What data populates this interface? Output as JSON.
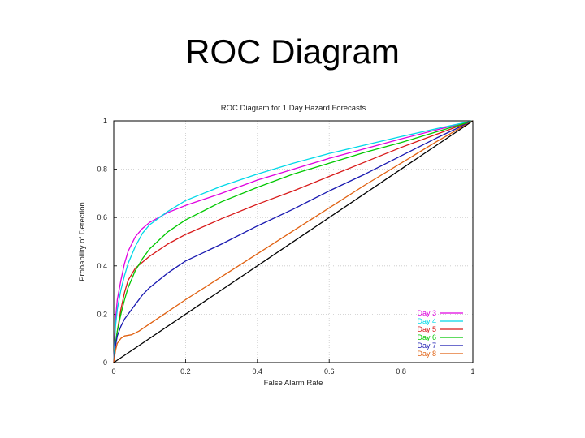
{
  "slide": {
    "title": "ROC Diagram"
  },
  "chart_data": {
    "type": "line",
    "title": "ROC Diagram for 1 Day Hazard Forecasts",
    "xlabel": "False Alarm Rate",
    "ylabel": "Probability of Detection",
    "xlim": [
      0,
      1
    ],
    "ylim": [
      0,
      1
    ],
    "xticks": [
      "0",
      "0.2",
      "0.4",
      "0.6",
      "0.8",
      "1"
    ],
    "yticks": [
      "0",
      "0.2",
      "0.4",
      "0.6",
      "0.8",
      "1"
    ],
    "grid": true,
    "legend_position": "bottom-right",
    "series": [
      {
        "name": "Day 3",
        "color": "#e000e0",
        "points": [
          [
            0,
            0
          ],
          [
            0.005,
            0.18
          ],
          [
            0.01,
            0.26
          ],
          [
            0.02,
            0.34
          ],
          [
            0.03,
            0.41
          ],
          [
            0.04,
            0.46
          ],
          [
            0.06,
            0.52
          ],
          [
            0.08,
            0.555
          ],
          [
            0.1,
            0.58
          ],
          [
            0.15,
            0.62
          ],
          [
            0.2,
            0.65
          ],
          [
            0.3,
            0.7
          ],
          [
            0.4,
            0.755
          ],
          [
            0.5,
            0.8
          ],
          [
            0.6,
            0.845
          ],
          [
            0.7,
            0.885
          ],
          [
            0.8,
            0.925
          ],
          [
            0.9,
            0.963
          ],
          [
            1,
            1
          ]
        ]
      },
      {
        "name": "Day 4",
        "color": "#00d8e8",
        "points": [
          [
            0,
            0
          ],
          [
            0.005,
            0.15
          ],
          [
            0.01,
            0.22
          ],
          [
            0.02,
            0.3
          ],
          [
            0.03,
            0.36
          ],
          [
            0.04,
            0.41
          ],
          [
            0.06,
            0.48
          ],
          [
            0.08,
            0.535
          ],
          [
            0.1,
            0.57
          ],
          [
            0.15,
            0.625
          ],
          [
            0.2,
            0.67
          ],
          [
            0.3,
            0.73
          ],
          [
            0.4,
            0.78
          ],
          [
            0.5,
            0.825
          ],
          [
            0.6,
            0.865
          ],
          [
            0.7,
            0.9
          ],
          [
            0.8,
            0.935
          ],
          [
            0.9,
            0.968
          ],
          [
            1,
            1
          ]
        ]
      },
      {
        "name": "Day 5",
        "color": "#d81818",
        "points": [
          [
            0,
            0
          ],
          [
            0.005,
            0.08
          ],
          [
            0.01,
            0.13
          ],
          [
            0.02,
            0.22
          ],
          [
            0.03,
            0.29
          ],
          [
            0.04,
            0.34
          ],
          [
            0.06,
            0.39
          ],
          [
            0.08,
            0.415
          ],
          [
            0.1,
            0.44
          ],
          [
            0.15,
            0.49
          ],
          [
            0.2,
            0.53
          ],
          [
            0.3,
            0.595
          ],
          [
            0.4,
            0.655
          ],
          [
            0.5,
            0.71
          ],
          [
            0.6,
            0.77
          ],
          [
            0.7,
            0.83
          ],
          [
            0.8,
            0.89
          ],
          [
            0.9,
            0.945
          ],
          [
            1,
            1
          ]
        ]
      },
      {
        "name": "Day 6",
        "color": "#00c800",
        "points": [
          [
            0,
            0
          ],
          [
            0.005,
            0.08
          ],
          [
            0.01,
            0.13
          ],
          [
            0.02,
            0.2
          ],
          [
            0.03,
            0.26
          ],
          [
            0.04,
            0.31
          ],
          [
            0.06,
            0.38
          ],
          [
            0.08,
            0.43
          ],
          [
            0.1,
            0.47
          ],
          [
            0.15,
            0.54
          ],
          [
            0.2,
            0.59
          ],
          [
            0.3,
            0.665
          ],
          [
            0.4,
            0.725
          ],
          [
            0.5,
            0.78
          ],
          [
            0.6,
            0.825
          ],
          [
            0.7,
            0.87
          ],
          [
            0.8,
            0.91
          ],
          [
            0.9,
            0.955
          ],
          [
            1,
            1
          ]
        ]
      },
      {
        "name": "Day 7",
        "color": "#1818b0",
        "points": [
          [
            0,
            0
          ],
          [
            0.005,
            0.07
          ],
          [
            0.01,
            0.11
          ],
          [
            0.02,
            0.15
          ],
          [
            0.03,
            0.18
          ],
          [
            0.04,
            0.2
          ],
          [
            0.06,
            0.24
          ],
          [
            0.08,
            0.28
          ],
          [
            0.1,
            0.31
          ],
          [
            0.15,
            0.37
          ],
          [
            0.2,
            0.42
          ],
          [
            0.3,
            0.49
          ],
          [
            0.4,
            0.565
          ],
          [
            0.5,
            0.635
          ],
          [
            0.6,
            0.71
          ],
          [
            0.7,
            0.78
          ],
          [
            0.8,
            0.855
          ],
          [
            0.9,
            0.93
          ],
          [
            1,
            1
          ]
        ]
      },
      {
        "name": "Day 8",
        "color": "#e06010",
        "points": [
          [
            0,
            0
          ],
          [
            0.005,
            0.05
          ],
          [
            0.01,
            0.08
          ],
          [
            0.02,
            0.1
          ],
          [
            0.03,
            0.11
          ],
          [
            0.05,
            0.115
          ],
          [
            0.07,
            0.13
          ],
          [
            0.1,
            0.16
          ],
          [
            0.15,
            0.21
          ],
          [
            0.2,
            0.26
          ],
          [
            0.3,
            0.355
          ],
          [
            0.4,
            0.45
          ],
          [
            0.5,
            0.545
          ],
          [
            0.6,
            0.64
          ],
          [
            0.7,
            0.735
          ],
          [
            0.8,
            0.825
          ],
          [
            0.9,
            0.915
          ],
          [
            1,
            1
          ]
        ]
      },
      {
        "name": "",
        "color": "#000000",
        "points": [
          [
            0,
            0
          ],
          [
            1,
            1
          ]
        ]
      }
    ]
  }
}
